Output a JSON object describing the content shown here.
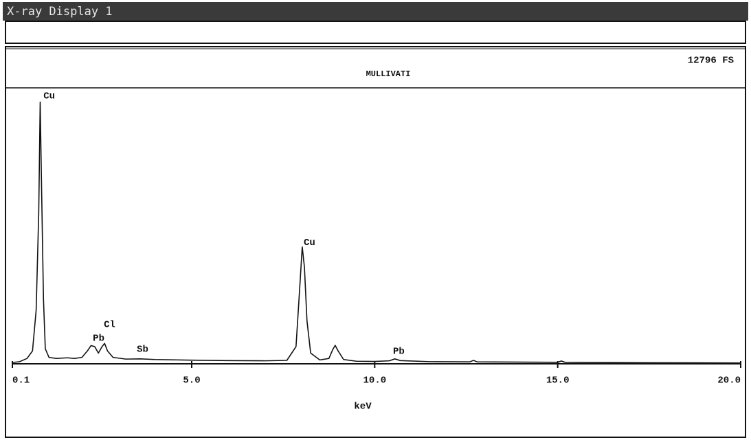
{
  "window_title": "X-ray Display 1",
  "chart_data": {
    "type": "line",
    "title": "MULLIVATI",
    "full_scale_label": "12796 FS",
    "xlabel": "keV",
    "xlim": [
      0.1,
      20.0
    ],
    "xticks": [
      0.1,
      {
        "value": 5,
        "label": "5.0"
      },
      {
        "value": 10,
        "label": "10.0"
      },
      {
        "value": 15,
        "label": "15.0"
      },
      {
        "value": 20,
        "label": "20.0"
      }
    ],
    "ylim": [
      0,
      12796
    ],
    "color": "#111111",
    "x": [
      0.1,
      0.3,
      0.5,
      0.65,
      0.75,
      0.82,
      0.86,
      0.9,
      0.95,
      1.0,
      1.1,
      1.3,
      1.6,
      1.8,
      2.0,
      2.15,
      2.25,
      2.35,
      2.45,
      2.55,
      2.62,
      2.7,
      2.85,
      3.2,
      3.6,
      4.0,
      5.0,
      6.0,
      7.0,
      7.6,
      7.85,
      7.95,
      8.02,
      8.08,
      8.15,
      8.25,
      8.5,
      8.75,
      8.85,
      8.92,
      9.0,
      9.15,
      9.5,
      10.0,
      10.4,
      10.55,
      10.7,
      11.5,
      12.6,
      12.7,
      12.8,
      15.0,
      15.1,
      15.2,
      17.5,
      20.0
    ],
    "values": [
      60,
      100,
      250,
      600,
      2500,
      7000,
      12200,
      8000,
      3000,
      700,
      300,
      250,
      280,
      250,
      300,
      600,
      850,
      800,
      500,
      800,
      950,
      600,
      300,
      220,
      230,
      200,
      170,
      150,
      140,
      160,
      800,
      3500,
      5450,
      4500,
      2000,
      500,
      180,
      250,
      650,
      860,
      600,
      200,
      120,
      110,
      140,
      230,
      150,
      100,
      90,
      160,
      90,
      70,
      130,
      70,
      50,
      40
    ],
    "annotations": [
      {
        "text": "Cu",
        "x": 0.95,
        "y": 12476
      },
      {
        "text": "Pb",
        "x": 2.3,
        "y": 1184
      },
      {
        "text": "Cl",
        "x": 2.6,
        "y": 1823
      },
      {
        "text": "Sb",
        "x": 3.5,
        "y": 672
      },
      {
        "text": "Cu",
        "x": 8.06,
        "y": 5660
      },
      {
        "text": "Pb",
        "x": 10.5,
        "y": 576
      }
    ]
  }
}
